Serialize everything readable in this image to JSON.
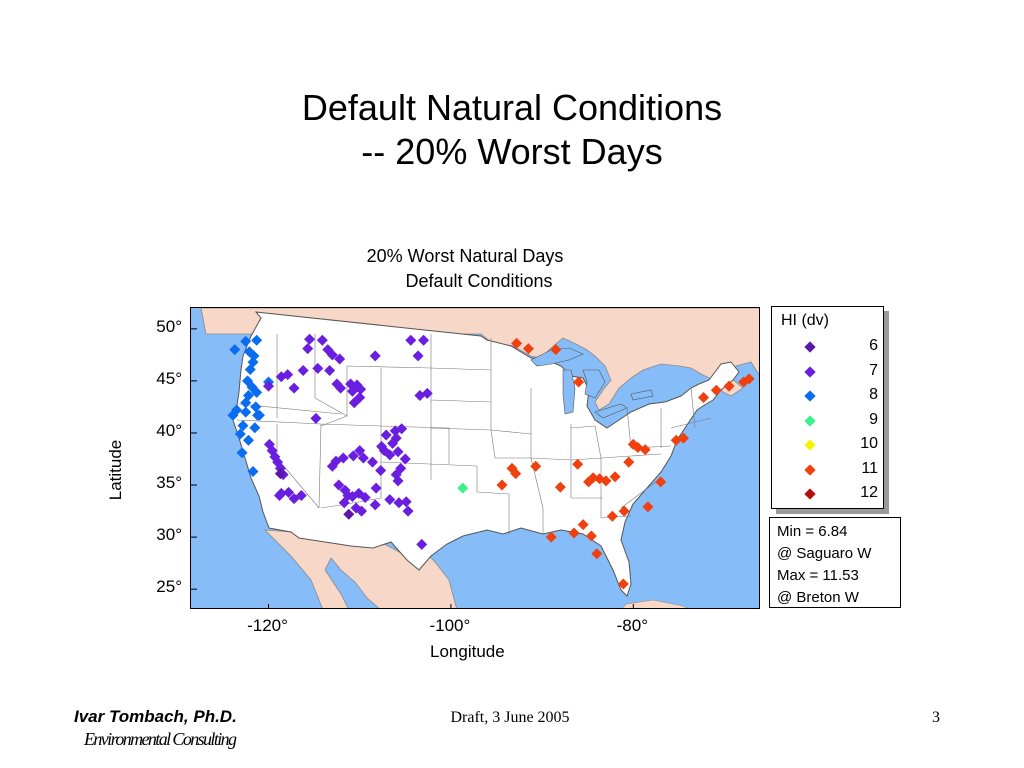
{
  "slide": {
    "title_line1": "Default Natural Conditions",
    "title_line2": "-- 20% Worst Days",
    "footer_author": "Ivar Tombach, Ph.D.",
    "footer_org": "Environmental Consulting",
    "footer_draft": "Draft, 3 June 2005",
    "page_number": "3"
  },
  "chart_data": {
    "type": "scatter",
    "title": "20% Worst Natural Days",
    "subtitle": "Default Conditions",
    "xlabel": "Longitude",
    "ylabel": "Latitude",
    "xlim": [
      -128.5,
      -66
    ],
    "ylim": [
      23,
      52
    ],
    "x_ticks": [
      {
        "value": -120,
        "label": "-120°"
      },
      {
        "value": -100,
        "label": "-100°"
      },
      {
        "value": -80,
        "label": "-80°"
      }
    ],
    "y_ticks": [
      {
        "value": 50,
        "label": "50°"
      },
      {
        "value": 45,
        "label": "45°"
      },
      {
        "value": 40,
        "label": "40°"
      },
      {
        "value": 35,
        "label": "35°"
      },
      {
        "value": 30,
        "label": "30°"
      },
      {
        "value": 25,
        "label": "25°"
      }
    ],
    "legend": {
      "title": "HI (dv)",
      "placement": "right",
      "entries": [
        {
          "value": "6",
          "color": "#5b18a8"
        },
        {
          "value": "7",
          "color": "#6a1fe0"
        },
        {
          "value": "8",
          "color": "#0a6cf0"
        },
        {
          "value": "9",
          "color": "#3cf08a"
        },
        {
          "value": "10",
          "color": "#f5f500"
        },
        {
          "value": "11",
          "color": "#f04010"
        },
        {
          "value": "12",
          "color": "#b01010"
        }
      ]
    },
    "stats": {
      "min_line": "Min = 6.84",
      "min_site": "@ Saguaro W",
      "max_line": "Max = 11.53",
      "max_site": "@ Breton W"
    },
    "points": [
      {
        "lon": -122.5,
        "lat": 48.8,
        "hi": 8
      },
      {
        "lon": -121.3,
        "lat": 48.9,
        "hi": 8
      },
      {
        "lon": -122.1,
        "lat": 47.8,
        "hi": 8
      },
      {
        "lon": -121.6,
        "lat": 47.4,
        "hi": 8
      },
      {
        "lon": -123.7,
        "lat": 48.0,
        "hi": 8
      },
      {
        "lon": -121.7,
        "lat": 46.8,
        "hi": 8
      },
      {
        "lon": -122.0,
        "lat": 46.1,
        "hi": 8
      },
      {
        "lon": -122.3,
        "lat": 45.0,
        "hi": 8
      },
      {
        "lon": -121.8,
        "lat": 44.4,
        "hi": 8
      },
      {
        "lon": -122.2,
        "lat": 43.6,
        "hi": 8
      },
      {
        "lon": -121.3,
        "lat": 43.9,
        "hi": 8
      },
      {
        "lon": -122.5,
        "lat": 42.9,
        "hi": 8
      },
      {
        "lon": -121.4,
        "lat": 42.5,
        "hi": 8
      },
      {
        "lon": -123.5,
        "lat": 42.2,
        "hi": 8
      },
      {
        "lon": -122.5,
        "lat": 42.0,
        "hi": 8
      },
      {
        "lon": -123.9,
        "lat": 41.7,
        "hi": 8
      },
      {
        "lon": -121.2,
        "lat": 41.7,
        "hi": 8
      },
      {
        "lon": -122.8,
        "lat": 40.7,
        "hi": 8
      },
      {
        "lon": -121.5,
        "lat": 40.5,
        "hi": 8
      },
      {
        "lon": -123.1,
        "lat": 39.9,
        "hi": 8
      },
      {
        "lon": -122.2,
        "lat": 39.3,
        "hi": 8
      },
      {
        "lon": -122.9,
        "lat": 38.1,
        "hi": 8
      },
      {
        "lon": -121.7,
        "lat": 36.3,
        "hi": 8
      },
      {
        "lon": -120.0,
        "lat": 44.9,
        "hi": 8
      },
      {
        "lon": -121.0,
        "lat": 41.7,
        "hi": 8
      },
      {
        "lon": -119.9,
        "lat": 38.9,
        "hi": 7
      },
      {
        "lon": -119.6,
        "lat": 38.3,
        "hi": 7
      },
      {
        "lon": -119.3,
        "lat": 37.7,
        "hi": 7
      },
      {
        "lon": -119.0,
        "lat": 37.2,
        "hi": 7
      },
      {
        "lon": -118.7,
        "lat": 36.6,
        "hi": 7
      },
      {
        "lon": -118.4,
        "lat": 36.0,
        "hi": 7
      },
      {
        "lon": -118.6,
        "lat": 34.2,
        "hi": 7
      },
      {
        "lon": -117.8,
        "lat": 34.3,
        "hi": 7
      },
      {
        "lon": -117.2,
        "lat": 33.7,
        "hi": 7
      },
      {
        "lon": -116.4,
        "lat": 34.0,
        "hi": 7
      },
      {
        "lon": -118.8,
        "lat": 34.0,
        "hi": 7
      },
      {
        "lon": -120.0,
        "lat": 44.5,
        "hi": 7
      },
      {
        "lon": -118.6,
        "lat": 45.4,
        "hi": 7
      },
      {
        "lon": -117.9,
        "lat": 45.6,
        "hi": 7
      },
      {
        "lon": -117.2,
        "lat": 44.3,
        "hi": 7
      },
      {
        "lon": -116.2,
        "lat": 46.0,
        "hi": 7
      },
      {
        "lon": -115.5,
        "lat": 49.0,
        "hi": 7
      },
      {
        "lon": -115.7,
        "lat": 48.1,
        "hi": 7
      },
      {
        "lon": -114.1,
        "lat": 48.9,
        "hi": 7
      },
      {
        "lon": -113.5,
        "lat": 48.0,
        "hi": 7
      },
      {
        "lon": -113.0,
        "lat": 47.5,
        "hi": 7
      },
      {
        "lon": -112.2,
        "lat": 47.1,
        "hi": 7
      },
      {
        "lon": -114.6,
        "lat": 46.2,
        "hi": 7
      },
      {
        "lon": -113.3,
        "lat": 46.0,
        "hi": 7
      },
      {
        "lon": -112.5,
        "lat": 44.7,
        "hi": 7
      },
      {
        "lon": -111.0,
        "lat": 44.7,
        "hi": 7
      },
      {
        "lon": -110.3,
        "lat": 44.6,
        "hi": 7
      },
      {
        "lon": -110.8,
        "lat": 44.0,
        "hi": 7
      },
      {
        "lon": -110.0,
        "lat": 43.4,
        "hi": 7
      },
      {
        "lon": -110.6,
        "lat": 42.9,
        "hi": 7
      },
      {
        "lon": -109.9,
        "lat": 44.2,
        "hi": 7
      },
      {
        "lon": -108.3,
        "lat": 47.4,
        "hi": 7
      },
      {
        "lon": -104.4,
        "lat": 48.9,
        "hi": 7
      },
      {
        "lon": -103.0,
        "lat": 48.9,
        "hi": 7
      },
      {
        "lon": -103.6,
        "lat": 47.4,
        "hi": 7
      },
      {
        "lon": -103.4,
        "lat": 43.6,
        "hi": 7
      },
      {
        "lon": -102.6,
        "lat": 43.8,
        "hi": 7
      },
      {
        "lon": -112.1,
        "lat": 44.3,
        "hi": 7
      },
      {
        "lon": -114.8,
        "lat": 41.4,
        "hi": 7
      },
      {
        "lon": -112.6,
        "lat": 37.3,
        "hi": 7
      },
      {
        "lon": -111.8,
        "lat": 37.6,
        "hi": 7
      },
      {
        "lon": -110.7,
        "lat": 37.8,
        "hi": 7
      },
      {
        "lon": -110.0,
        "lat": 38.3,
        "hi": 7
      },
      {
        "lon": -109.6,
        "lat": 37.6,
        "hi": 7
      },
      {
        "lon": -113.0,
        "lat": 36.8,
        "hi": 7
      },
      {
        "lon": -112.3,
        "lat": 35.0,
        "hi": 7
      },
      {
        "lon": -111.6,
        "lat": 34.5,
        "hi": 7
      },
      {
        "lon": -111.3,
        "lat": 34.0,
        "hi": 7
      },
      {
        "lon": -111.7,
        "lat": 33.3,
        "hi": 7
      },
      {
        "lon": -110.8,
        "lat": 33.9,
        "hi": 7
      },
      {
        "lon": -110.4,
        "lat": 32.8,
        "hi": 7
      },
      {
        "lon": -109.8,
        "lat": 32.5,
        "hi": 7
      },
      {
        "lon": -109.4,
        "lat": 33.8,
        "hi": 7
      },
      {
        "lon": -110.1,
        "lat": 34.2,
        "hi": 7
      },
      {
        "lon": -108.3,
        "lat": 33.1,
        "hi": 7
      },
      {
        "lon": -106.7,
        "lat": 33.6,
        "hi": 7
      },
      {
        "lon": -105.7,
        "lat": 33.3,
        "hi": 7
      },
      {
        "lon": -104.9,
        "lat": 33.4,
        "hi": 7
      },
      {
        "lon": -104.7,
        "lat": 32.5,
        "hi": 7
      },
      {
        "lon": -108.2,
        "lat": 34.7,
        "hi": 7
      },
      {
        "lon": -107.7,
        "lat": 36.4,
        "hi": 7
      },
      {
        "lon": -106.0,
        "lat": 36.0,
        "hi": 7
      },
      {
        "lon": -105.8,
        "lat": 35.4,
        "hi": 7
      },
      {
        "lon": -106.7,
        "lat": 37.9,
        "hi": 7
      },
      {
        "lon": -106.4,
        "lat": 39.0,
        "hi": 7
      },
      {
        "lon": -107.3,
        "lat": 38.3,
        "hi": 7
      },
      {
        "lon": -107.6,
        "lat": 38.7,
        "hi": 7
      },
      {
        "lon": -106.1,
        "lat": 40.2,
        "hi": 7
      },
      {
        "lon": -105.4,
        "lat": 40.4,
        "hi": 7
      },
      {
        "lon": -106.0,
        "lat": 39.5,
        "hi": 7
      },
      {
        "lon": -107.1,
        "lat": 39.8,
        "hi": 7
      },
      {
        "lon": -105.8,
        "lat": 38.2,
        "hi": 7
      },
      {
        "lon": -105.0,
        "lat": 37.5,
        "hi": 7
      },
      {
        "lon": -105.5,
        "lat": 36.6,
        "hi": 7
      },
      {
        "lon": -108.6,
        "lat": 37.2,
        "hi": 7
      },
      {
        "lon": -103.2,
        "lat": 29.3,
        "hi": 7
      },
      {
        "lon": -118.7,
        "lat": 36.1,
        "hi": 6
      },
      {
        "lon": -111.2,
        "lat": 32.2,
        "hi": 6
      },
      {
        "lon": -98.7,
        "lat": 34.7,
        "hi": 9
      },
      {
        "lon": -92.8,
        "lat": 48.6,
        "hi": 11
      },
      {
        "lon": -91.5,
        "lat": 48.1,
        "hi": 11
      },
      {
        "lon": -88.5,
        "lat": 48.0,
        "hi": 11
      },
      {
        "lon": -86.0,
        "lat": 44.9,
        "hi": 11
      },
      {
        "lon": -93.3,
        "lat": 36.6,
        "hi": 11
      },
      {
        "lon": -94.4,
        "lat": 35.0,
        "hi": 11
      },
      {
        "lon": -92.9,
        "lat": 36.1,
        "hi": 11
      },
      {
        "lon": -90.7,
        "lat": 36.8,
        "hi": 11
      },
      {
        "lon": -86.1,
        "lat": 37.0,
        "hi": 11
      },
      {
        "lon": -88.0,
        "lat": 34.8,
        "hi": 11
      },
      {
        "lon": -84.9,
        "lat": 35.3,
        "hi": 11
      },
      {
        "lon": -84.4,
        "lat": 35.7,
        "hi": 11
      },
      {
        "lon": -83.7,
        "lat": 35.6,
        "hi": 11
      },
      {
        "lon": -83.0,
        "lat": 35.4,
        "hi": 11
      },
      {
        "lon": -82.0,
        "lat": 35.8,
        "hi": 11
      },
      {
        "lon": -80.5,
        "lat": 37.2,
        "hi": 11
      },
      {
        "lon": -80.0,
        "lat": 38.9,
        "hi": 11
      },
      {
        "lon": -79.5,
        "lat": 38.6,
        "hi": 11
      },
      {
        "lon": -78.7,
        "lat": 38.4,
        "hi": 11
      },
      {
        "lon": -77.0,
        "lat": 35.3,
        "hi": 11
      },
      {
        "lon": -78.4,
        "lat": 32.9,
        "hi": 11
      },
      {
        "lon": -82.3,
        "lat": 32.0,
        "hi": 11
      },
      {
        "lon": -81.0,
        "lat": 32.5,
        "hi": 11
      },
      {
        "lon": -84.6,
        "lat": 30.1,
        "hi": 11
      },
      {
        "lon": -89.0,
        "lat": 30.0,
        "hi": 11
      },
      {
        "lon": -84.0,
        "lat": 28.4,
        "hi": 11
      },
      {
        "lon": -81.1,
        "lat": 25.5,
        "hi": 11
      },
      {
        "lon": -75.3,
        "lat": 39.3,
        "hi": 11
      },
      {
        "lon": -74.5,
        "lat": 39.5,
        "hi": 11
      },
      {
        "lon": -72.3,
        "lat": 43.4,
        "hi": 11
      },
      {
        "lon": -70.9,
        "lat": 44.1,
        "hi": 11
      },
      {
        "lon": -69.5,
        "lat": 44.5,
        "hi": 11
      },
      {
        "lon": -67.9,
        "lat": 44.9,
        "hi": 11
      },
      {
        "lon": -67.3,
        "lat": 45.2,
        "hi": 11
      },
      {
        "lon": -86.5,
        "lat": 30.4,
        "hi": 11
      },
      {
        "lon": -85.5,
        "lat": 31.2,
        "hi": 11
      }
    ]
  }
}
